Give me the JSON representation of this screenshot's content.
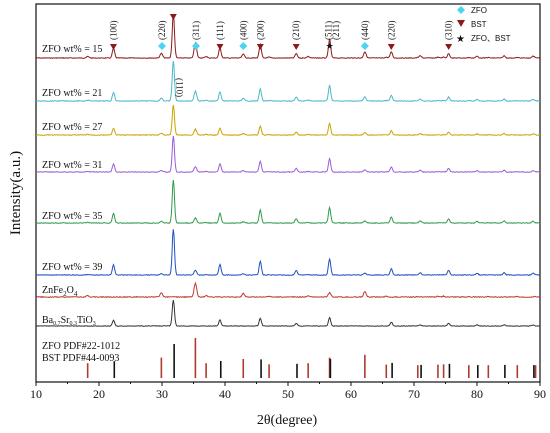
{
  "chart_data": {
    "type": "line",
    "xlabel": "2θ(degree)",
    "ylabel": "Intensity(a.u.)",
    "xlim": [
      10,
      90
    ],
    "x_ticks": [
      "10",
      "20",
      "30",
      "40",
      "50",
      "60",
      "70",
      "80",
      "90"
    ],
    "legend": {
      "placement": "top-right",
      "items": [
        {
          "name": "ZFO",
          "color": "#4ad4f2",
          "marker": "diamond"
        },
        {
          "name": "BST",
          "color": "#8b1a1a",
          "marker": "triangle-down"
        },
        {
          "name": "ZFO、BST",
          "color": "#111111",
          "marker": "star"
        }
      ]
    },
    "series": [
      {
        "name": "ZFO wt% = 15",
        "color": "#8b1a1a"
      },
      {
        "name": "ZFO wt% = 21",
        "color": "#4ab8c9"
      },
      {
        "name": "ZFO wt% = 27",
        "color": "#c9a400"
      },
      {
        "name": "ZFO wt% = 31",
        "color": "#9b5cd6"
      },
      {
        "name": "ZFO wt% = 35",
        "color": "#2e9a4e"
      },
      {
        "name": "ZFO wt% = 39",
        "color": "#1f4fc0"
      },
      {
        "name": "ZnFe2O4",
        "color": "#c0392b"
      },
      {
        "name": "Ba0.7Sr0.3TiO3",
        "color": "#333333"
      }
    ],
    "bst_peaks": [
      22.3,
      31.8,
      39.2,
      45.6,
      51.3,
      56.6,
      66.4,
      71.0,
      75.5,
      80.0,
      84.3,
      88.9
    ],
    "zfo_peaks": [
      18.2,
      29.9,
      35.3,
      37.0,
      42.9,
      47.0,
      53.2,
      56.6,
      62.2,
      65.6,
      70.6,
      73.8,
      74.7,
      78.7,
      81.8,
      86.4,
      89.3
    ],
    "hkl_labels": [
      {
        "text": "(100)",
        "x": 22.3
      },
      {
        "text": "(220)",
        "x": 30.0
      },
      {
        "text": "(110)",
        "x": 31.8
      },
      {
        "text": "(311)",
        "x": 35.4
      },
      {
        "text": "(111)",
        "x": 39.2
      },
      {
        "text": "(400)",
        "x": 42.9
      },
      {
        "text": "(200)",
        "x": 45.6
      },
      {
        "text": "(210)",
        "x": 51.3
      },
      {
        "text": "(511)",
        "x": 56.4
      },
      {
        "text": "(211)",
        "x": 57.6
      },
      {
        "text": "(440)",
        "x": 62.2
      },
      {
        "text": "(220)",
        "x": 66.4
      },
      {
        "text": "(310)",
        "x": 75.5
      }
    ],
    "reference_labels": {
      "zfo": "ZFO PDF#22-1012",
      "bst": "BST PDF#44-0093",
      "zfo_color": "#b03a2e",
      "bst_color": "#111111"
    },
    "series_text": {
      "s15": "ZFO wt% = 15",
      "s21": "ZFO wt% = 21",
      "s27": "ZFO wt% = 27",
      "s31": "ZFO wt% = 31",
      "s35": "ZFO wt% = 35",
      "s39": "ZFO wt% = 39",
      "zfo_main": "ZnFe",
      "zfo_sub2": "2",
      "zfo_o": "O",
      "zfo_sub4": "4",
      "bst_ba": "Ba",
      "bst_sub1": "0.7",
      "bst_sr": "Sr",
      "bst_sub2": "0.3",
      "bst_rest": "TiO",
      "bst_sub3": "3"
    }
  }
}
